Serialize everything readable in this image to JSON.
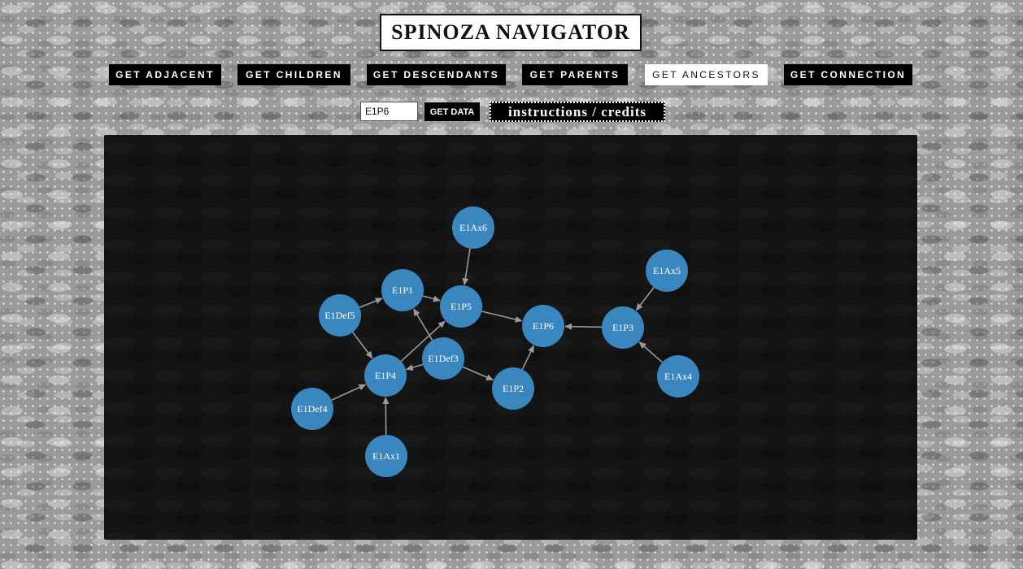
{
  "app": {
    "title": "SPINOZA NAVIGATOR"
  },
  "nav": {
    "buttons": [
      {
        "label": "GET ADJACENT",
        "active": false
      },
      {
        "label": "GET CHILDREN",
        "active": false
      },
      {
        "label": "GET DESCENDANTS",
        "active": false
      },
      {
        "label": "GET PARENTS",
        "active": false
      },
      {
        "label": "GET ANCESTORS",
        "active": true
      },
      {
        "label": "GET CONNECTION",
        "active": false
      }
    ]
  },
  "query": {
    "input_value": "E1P6",
    "get_data_label": "GET DATA",
    "instructions_label": "instructions / credits"
  },
  "graph": {
    "node_color": "#3a87c0",
    "edge_color": "#9a9a9a",
    "nodes": [
      "E1Ax6",
      "E1Ax5",
      "E1P1",
      "E1P5",
      "E1Def5",
      "E1P6",
      "E1P3",
      "E1Def3",
      "E1P4",
      "E1Ax4",
      "E1P2",
      "E1Def4",
      "E1Ax1"
    ],
    "edges": [
      [
        "E1Ax6",
        "E1P5"
      ],
      [
        "E1P1",
        "E1P5"
      ],
      [
        "E1Def5",
        "E1P1"
      ],
      [
        "E1P5",
        "E1P6"
      ],
      [
        "E1P3",
        "E1P6"
      ],
      [
        "E1Ax5",
        "E1P3"
      ],
      [
        "E1Ax4",
        "E1P3"
      ],
      [
        "E1Def5",
        "E1P4"
      ],
      [
        "E1Def3",
        "E1P4"
      ],
      [
        "E1Def3",
        "E1P1"
      ],
      [
        "E1P4",
        "E1P5"
      ],
      [
        "E1Def3",
        "E1P2"
      ],
      [
        "E1P2",
        "E1P6"
      ],
      [
        "E1Def4",
        "E1P4"
      ],
      [
        "E1Ax1",
        "E1P4"
      ]
    ]
  }
}
